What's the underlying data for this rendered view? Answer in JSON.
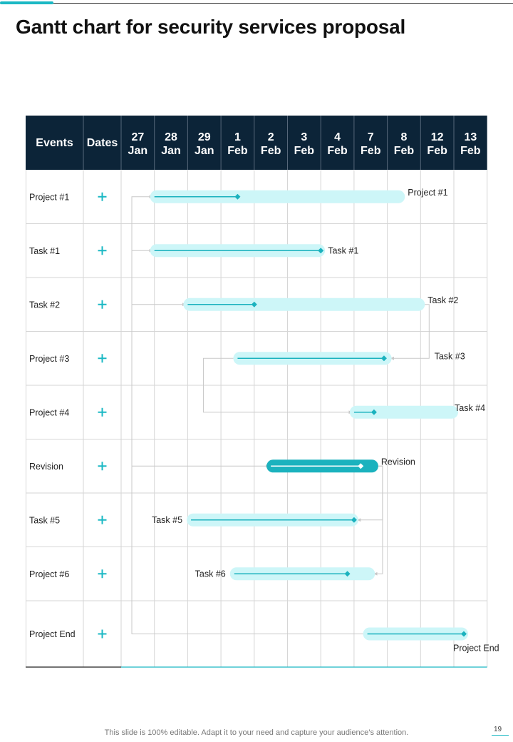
{
  "title": "Gantt chart for security services proposal",
  "footer_note": "This slide is 100% editable. Adapt it to your need and capture your audience’s attention.",
  "page_number": "19",
  "colors": {
    "header_bg": "#0c2438",
    "accent": "#1bb8c4",
    "bar_light": "#cdf6f8",
    "bar_dark": "#1bb2be",
    "grid": "#d6d6d6",
    "connector": "#c8c8c8"
  },
  "chart_data": {
    "type": "gantt",
    "header": {
      "events_label": "Events",
      "dates_label": "Dates",
      "columns": [
        [
          "27",
          "Jan"
        ],
        [
          "28",
          "Jan"
        ],
        [
          "29",
          "Jan"
        ],
        [
          "1",
          "Feb"
        ],
        [
          "2",
          "Feb"
        ],
        [
          "3",
          "Feb"
        ],
        [
          "4",
          "Feb"
        ],
        [
          "7",
          "Feb"
        ],
        [
          "8",
          "Feb"
        ],
        [
          "12",
          "Feb"
        ],
        [
          "13",
          "Feb"
        ]
      ]
    },
    "rows": [
      {
        "event": "Project #1",
        "dates_icon": "plus-icon"
      },
      {
        "event": "Task #1",
        "dates_icon": "plus-icon"
      },
      {
        "event": "Task #2",
        "dates_icon": "plus-icon"
      },
      {
        "event": "Project #3",
        "dates_icon": "plus-icon"
      },
      {
        "event": "Project #4",
        "dates_icon": "plus-icon"
      },
      {
        "event": "Revision",
        "dates_icon": "plus-icon"
      },
      {
        "event": "Task #5",
        "dates_icon": "plus-icon"
      },
      {
        "event": "Project #6",
        "dates_icon": "plus-icon"
      },
      {
        "event": "Project End",
        "dates_icon": "plus-icon"
      }
    ],
    "bars": [
      {
        "row": 0,
        "label": "Project #1",
        "label_side": "right-top",
        "start": 1.0,
        "end": 8.4,
        "progress_end": 3.5,
        "style": "light"
      },
      {
        "row": 1,
        "label": "Task #1",
        "label_side": "right",
        "start": 1.0,
        "end": 6.0,
        "progress_end": 6.0,
        "style": "light"
      },
      {
        "row": 2,
        "label": "Task #2",
        "label_side": "right-top",
        "start": 2.0,
        "end": 9.0,
        "progress_end": 4.0,
        "style": "light"
      },
      {
        "row": 3,
        "label": "Task #3",
        "label_side": "right-far",
        "start": 3.5,
        "end": 8.0,
        "progress_end": 7.9,
        "style": "light"
      },
      {
        "row": 4,
        "label": "Task #4",
        "label_side": "right-top",
        "start": 7.0,
        "end": 10.0,
        "progress_end": 7.6,
        "style": "light"
      },
      {
        "row": 5,
        "label": "Revision",
        "label_side": "right-top",
        "start": 4.5,
        "end": 7.6,
        "progress_end": 7.2,
        "style": "dark"
      },
      {
        "row": 6,
        "label": "Task #5",
        "label_side": "left",
        "start": 2.1,
        "end": 7.0,
        "progress_end": 7.0,
        "style": "light"
      },
      {
        "row": 7,
        "label": "Task #6",
        "label_side": "left",
        "start": 3.4,
        "end": 7.5,
        "progress_end": 6.8,
        "style": "light"
      },
      {
        "row": 8,
        "label": "Project End",
        "label_side": "right-below",
        "start": 7.4,
        "end": 10.3,
        "progress_end": 10.3,
        "style": "light"
      }
    ],
    "connectors": [
      {
        "from_row": 8,
        "to_row": 0,
        "kind": "left-spine"
      },
      {
        "from_row": 8,
        "to_row": 1,
        "kind": "left-spine"
      },
      {
        "from_row": 8,
        "to_row": 2,
        "kind": "left-spine"
      },
      {
        "from_row": 8,
        "to_row": 5,
        "kind": "left-spine"
      },
      {
        "from_row": 2,
        "to_row": 3,
        "kind": "right-elbow"
      },
      {
        "from_row": 3,
        "to_row": 4,
        "kind": "left-elbow"
      },
      {
        "from_row": 5,
        "to_row": 6,
        "kind": "right-elbow"
      },
      {
        "from_row": 5,
        "to_row": 7,
        "kind": "right-elbow"
      }
    ]
  }
}
